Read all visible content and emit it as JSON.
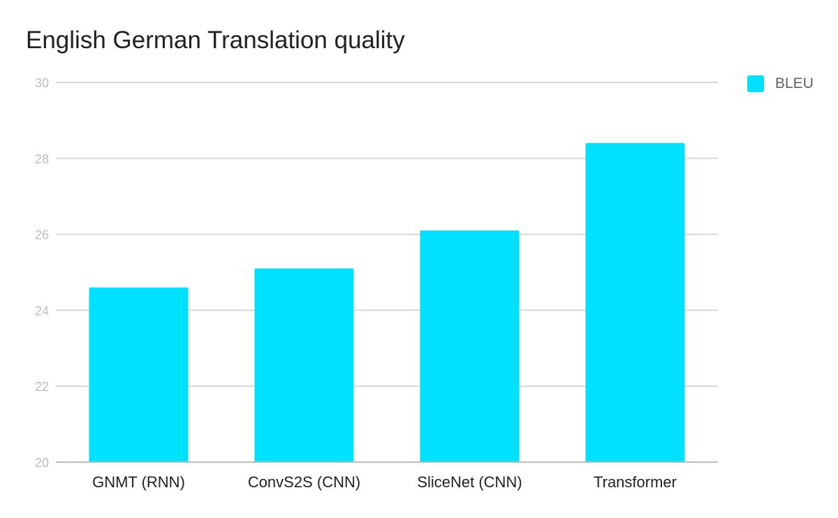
{
  "chart_data": {
    "type": "bar",
    "title": "English German Translation quality",
    "categories": [
      "GNMT (RNN)",
      "ConvS2S (CNN)",
      "SliceNet (CNN)",
      "Transformer"
    ],
    "series": [
      {
        "name": "BLEU",
        "values": [
          24.6,
          25.1,
          26.1,
          28.4
        ],
        "color": "#00e0ff"
      }
    ],
    "ylim": [
      20,
      30
    ],
    "yticks": [
      "20",
      "22",
      "24",
      "26",
      "28",
      "30"
    ],
    "grid": true,
    "legend_position": "top-right"
  }
}
